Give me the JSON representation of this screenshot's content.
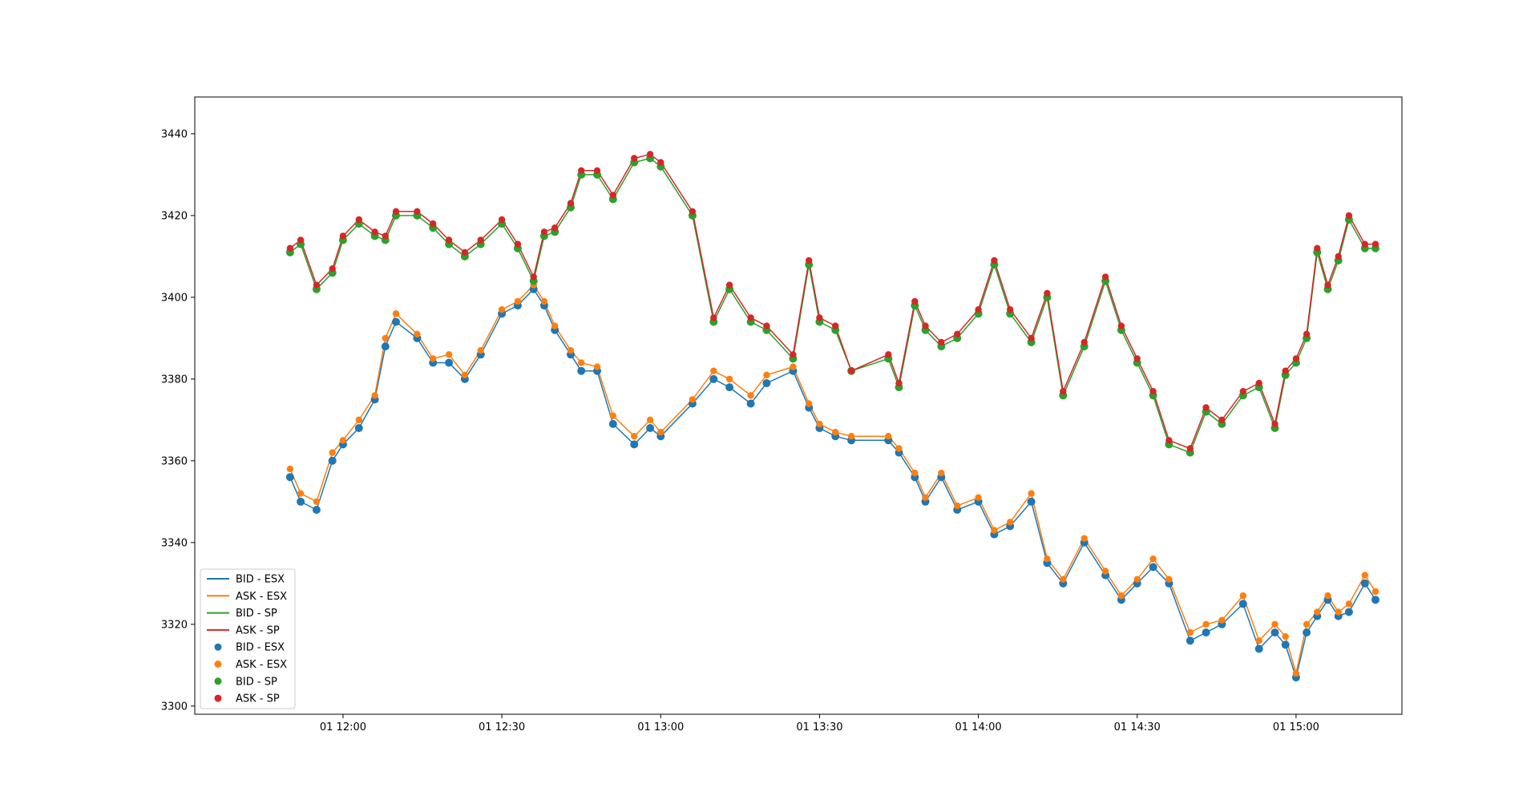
{
  "chart_data": {
    "type": "line",
    "title": "",
    "xlabel": "",
    "ylabel": "",
    "x_axis": {
      "kind": "time",
      "range": [
        "11:32",
        "15:20"
      ],
      "tick_values": [
        "12:00",
        "12:30",
        "13:00",
        "13:30",
        "14:00",
        "14:30",
        "15:00"
      ],
      "tick_labels": [
        "01 12:00",
        "01 12:30",
        "01 13:00",
        "01 13:30",
        "01 14:00",
        "01 14:30",
        "01 15:00"
      ]
    },
    "y_axis": {
      "range": [
        3298,
        3449
      ],
      "ticks": [
        3300,
        3320,
        3340,
        3360,
        3380,
        3400,
        3420,
        3440
      ],
      "tick_labels": [
        "3300",
        "3320",
        "3340",
        "3360",
        "3380",
        "3400",
        "3420",
        "3440"
      ]
    },
    "grid": false,
    "legend_position": "lower-left",
    "legend": {
      "lines": [
        "BID - ESX",
        "ASK - ESX",
        "BID - SP",
        "ASK - SP"
      ],
      "markers": [
        "BID - ESX",
        "ASK - ESX",
        "BID - SP",
        "ASK - SP"
      ]
    },
    "series": [
      {
        "name": "BID - ESX",
        "color": "#1f77b4",
        "x": [
          "11:50",
          "11:52",
          "11:55",
          "11:58",
          "12:00",
          "12:03",
          "12:06",
          "12:08",
          "12:10",
          "12:14",
          "12:17",
          "12:20",
          "12:23",
          "12:26",
          "12:30",
          "12:33",
          "12:36",
          "12:38",
          "12:40",
          "12:43",
          "12:45",
          "12:48",
          "12:51",
          "12:55",
          "12:58",
          "13:00",
          "13:06",
          "13:10",
          "13:13",
          "13:17",
          "13:20",
          "13:25",
          "13:28",
          "13:30",
          "13:33",
          "13:36",
          "13:43",
          "13:45",
          "13:48",
          "13:50",
          "13:53",
          "13:56",
          "14:00",
          "14:03",
          "14:06",
          "14:10",
          "14:13",
          "14:16",
          "14:20",
          "14:24",
          "14:27",
          "14:30",
          "14:33",
          "14:36",
          "14:40",
          "14:43",
          "14:46",
          "14:50",
          "14:53",
          "14:56",
          "14:58",
          "15:00",
          "15:02",
          "15:04",
          "15:06",
          "15:08",
          "15:10",
          "15:13",
          "15:15"
        ],
        "y": [
          3356,
          3350,
          3348,
          3360,
          3364,
          3368,
          3375,
          3388,
          3394,
          3390,
          3384,
          3384,
          3380,
          3386,
          3396,
          3398,
          3402,
          3398,
          3392,
          3386,
          3382,
          3382,
          3369,
          3364,
          3368,
          3366,
          3374,
          3380,
          3378,
          3374,
          3379,
          3382,
          3373,
          3368,
          3366,
          3365,
          3365,
          3362,
          3356,
          3350,
          3356,
          3348,
          3350,
          3342,
          3344,
          3350,
          3335,
          3330,
          3340,
          3332,
          3326,
          3330,
          3334,
          3330,
          3316,
          3318,
          3320,
          3325,
          3314,
          3318,
          3315,
          3307,
          3318,
          3322,
          3326,
          3322,
          3323,
          3330,
          3326
        ]
      },
      {
        "name": "ASK - ESX",
        "color": "#ff7f0e",
        "x": [
          "11:50",
          "11:52",
          "11:55",
          "11:58",
          "12:00",
          "12:03",
          "12:06",
          "12:08",
          "12:10",
          "12:14",
          "12:17",
          "12:20",
          "12:23",
          "12:26",
          "12:30",
          "12:33",
          "12:36",
          "12:38",
          "12:40",
          "12:43",
          "12:45",
          "12:48",
          "12:51",
          "12:55",
          "12:58",
          "13:00",
          "13:06",
          "13:10",
          "13:13",
          "13:17",
          "13:20",
          "13:25",
          "13:28",
          "13:30",
          "13:33",
          "13:36",
          "13:43",
          "13:45",
          "13:48",
          "13:50",
          "13:53",
          "13:56",
          "14:00",
          "14:03",
          "14:06",
          "14:10",
          "14:13",
          "14:16",
          "14:20",
          "14:24",
          "14:27",
          "14:30",
          "14:33",
          "14:36",
          "14:40",
          "14:43",
          "14:46",
          "14:50",
          "14:53",
          "14:56",
          "14:58",
          "15:00",
          "15:02",
          "15:04",
          "15:06",
          "15:08",
          "15:10",
          "15:13",
          "15:15"
        ],
        "y": [
          3358,
          3352,
          3350,
          3362,
          3365,
          3370,
          3376,
          3390,
          3396,
          3391,
          3385,
          3386,
          3381,
          3387,
          3397,
          3399,
          3403,
          3399,
          3393,
          3387,
          3384,
          3383,
          3371,
          3366,
          3370,
          3367,
          3375,
          3382,
          3380,
          3376,
          3381,
          3383,
          3374,
          3369,
          3367,
          3366,
          3366,
          3363,
          3357,
          3351,
          3357,
          3349,
          3351,
          3343,
          3345,
          3352,
          3336,
          3331,
          3341,
          3333,
          3327,
          3331,
          3336,
          3331,
          3318,
          3320,
          3321,
          3327,
          3316,
          3320,
          3317,
          3308,
          3320,
          3323,
          3327,
          3323,
          3325,
          3332,
          3328
        ]
      },
      {
        "name": "BID - SP",
        "color": "#2ca02c",
        "x": [
          "11:50",
          "11:52",
          "11:55",
          "11:58",
          "12:00",
          "12:03",
          "12:06",
          "12:08",
          "12:10",
          "12:14",
          "12:17",
          "12:20",
          "12:23",
          "12:26",
          "12:30",
          "12:33",
          "12:36",
          "12:38",
          "12:40",
          "12:43",
          "12:45",
          "12:48",
          "12:51",
          "12:55",
          "12:58",
          "13:00",
          "13:06",
          "13:10",
          "13:13",
          "13:17",
          "13:20",
          "13:25",
          "13:28",
          "13:30",
          "13:33",
          "13:36",
          "13:43",
          "13:45",
          "13:48",
          "13:50",
          "13:53",
          "13:56",
          "14:00",
          "14:03",
          "14:06",
          "14:10",
          "14:13",
          "14:16",
          "14:20",
          "14:24",
          "14:27",
          "14:30",
          "14:33",
          "14:36",
          "14:40",
          "14:43",
          "14:46",
          "14:50",
          "14:53",
          "14:56",
          "14:58",
          "15:00",
          "15:02",
          "15:04",
          "15:06",
          "15:08",
          "15:10",
          "15:13",
          "15:15"
        ],
        "y": [
          3411,
          3413,
          3402,
          3406,
          3414,
          3418,
          3415,
          3414,
          3420,
          3420,
          3417,
          3413,
          3410,
          3413,
          3418,
          3412,
          3404,
          3415,
          3416,
          3422,
          3430,
          3430,
          3424,
          3433,
          3434,
          3432,
          3420,
          3394,
          3402,
          3394,
          3392,
          3385,
          3408,
          3394,
          3392,
          3382,
          3385,
          3378,
          3398,
          3392,
          3388,
          3390,
          3396,
          3408,
          3396,
          3389,
          3400,
          3376,
          3388,
          3404,
          3392,
          3384,
          3376,
          3364,
          3362,
          3372,
          3369,
          3376,
          3378,
          3368,
          3381,
          3384,
          3390,
          3411,
          3402,
          3409,
          3419,
          3412,
          3412
        ]
      },
      {
        "name": "ASK - SP",
        "color": "#d62728",
        "x": [
          "11:50",
          "11:52",
          "11:55",
          "11:58",
          "12:00",
          "12:03",
          "12:06",
          "12:08",
          "12:10",
          "12:14",
          "12:17",
          "12:20",
          "12:23",
          "12:26",
          "12:30",
          "12:33",
          "12:36",
          "12:38",
          "12:40",
          "12:43",
          "12:45",
          "12:48",
          "12:51",
          "12:55",
          "12:58",
          "13:00",
          "13:06",
          "13:10",
          "13:13",
          "13:17",
          "13:20",
          "13:25",
          "13:28",
          "13:30",
          "13:33",
          "13:36",
          "13:43",
          "13:45",
          "13:48",
          "13:50",
          "13:53",
          "13:56",
          "14:00",
          "14:03",
          "14:06",
          "14:10",
          "14:13",
          "14:16",
          "14:20",
          "14:24",
          "14:27",
          "14:30",
          "14:33",
          "14:36",
          "14:40",
          "14:43",
          "14:46",
          "14:50",
          "14:53",
          "14:56",
          "14:58",
          "15:00",
          "15:02",
          "15:04",
          "15:06",
          "15:08",
          "15:10",
          "15:13",
          "15:15"
        ],
        "y": [
          3412,
          3414,
          3403,
          3407,
          3415,
          3419,
          3416,
          3415,
          3421,
          3421,
          3418,
          3414,
          3411,
          3414,
          3419,
          3413,
          3405,
          3416,
          3417,
          3423,
          3431,
          3431,
          3425,
          3434,
          3435,
          3433,
          3421,
          3395,
          3403,
          3395,
          3393,
          3386,
          3409,
          3395,
          3393,
          3382,
          3386,
          3379,
          3399,
          3393,
          3389,
          3391,
          3397,
          3409,
          3397,
          3390,
          3401,
          3377,
          3389,
          3405,
          3393,
          3385,
          3377,
          3365,
          3363,
          3373,
          3370,
          3377,
          3379,
          3369,
          3382,
          3385,
          3391,
          3412,
          3403,
          3410,
          3420,
          3413,
          3413
        ]
      }
    ]
  }
}
